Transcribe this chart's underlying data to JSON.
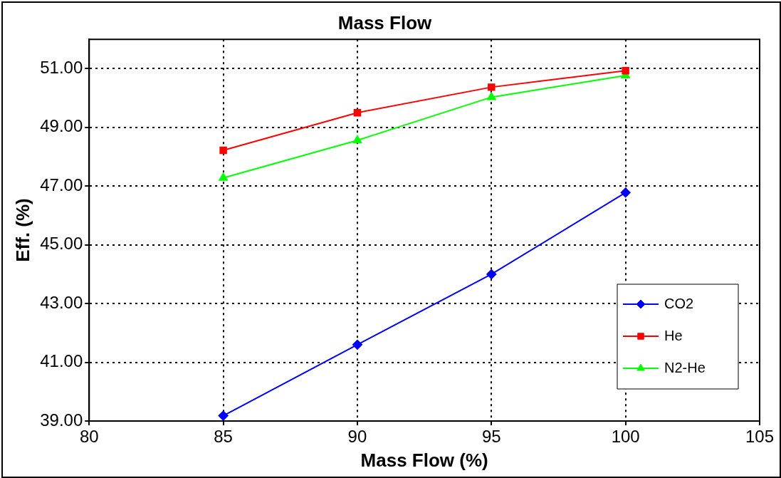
{
  "chart_data": {
    "type": "line",
    "title": "Mass Flow",
    "xlabel": "Mass Flow (%)",
    "ylabel": "Eff. (%)",
    "x": [
      85,
      90,
      95,
      100
    ],
    "series": [
      {
        "name": "CO2",
        "color": "#0000ff",
        "marker": "diamond",
        "values": [
          39.18,
          41.6,
          44.0,
          46.78
        ]
      },
      {
        "name": "He",
        "color": "#ff0000",
        "marker": "square",
        "values": [
          48.22,
          49.5,
          50.37,
          50.93
        ]
      },
      {
        "name": "N2-He",
        "color": "#00ff00",
        "marker": "triangle",
        "values": [
          47.28,
          48.56,
          50.03,
          50.77
        ]
      }
    ],
    "xlim": [
      80,
      105
    ],
    "xticks": [
      80,
      85,
      90,
      95,
      100,
      105
    ],
    "ylim": [
      39,
      52
    ],
    "yticks": [
      {
        "value": 39,
        "label": "39.00"
      },
      {
        "value": 41,
        "label": "41.00"
      },
      {
        "value": 43,
        "label": "43.00"
      },
      {
        "value": 45,
        "label": "45.00"
      },
      {
        "value": 47,
        "label": "47.00"
      },
      {
        "value": 49,
        "label": "49.00"
      },
      {
        "value": 51,
        "label": "51.00"
      }
    ],
    "grid": true,
    "legend": "bottom right",
    "line_style": "solid"
  }
}
